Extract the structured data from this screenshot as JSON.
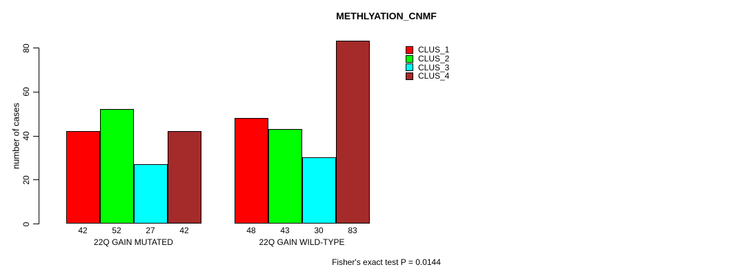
{
  "chart_data": {
    "type": "bar",
    "title": "METHLYATION_CNMF",
    "ylabel": "number of cases",
    "xlabel": "",
    "ylim": [
      0,
      80
    ],
    "yticks": [
      0,
      20,
      40,
      60,
      80
    ],
    "grid": false,
    "legend_position": "top-right-inside",
    "categories": [
      "22Q GAIN MUTATED",
      "22Q GAIN WILD-TYPE"
    ],
    "series": [
      {
        "name": "CLUS_1",
        "color": "#FF0000",
        "values": [
          42,
          48
        ]
      },
      {
        "name": "CLUS_2",
        "color": "#00FF00",
        "values": [
          52,
          43
        ]
      },
      {
        "name": "CLUS_3",
        "color": "#00FFFF",
        "values": [
          27,
          30
        ]
      },
      {
        "name": "CLUS_4",
        "color": "#A52A2A",
        "values": [
          42,
          83
        ]
      }
    ],
    "bar_value_labels_shown": true,
    "annotation": "Fisher's exact test P = 0.0144",
    "axis_color": "#000000",
    "text_color": "#000000",
    "background_color": "#FFFFFF"
  }
}
